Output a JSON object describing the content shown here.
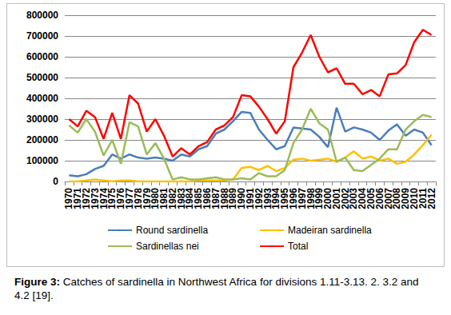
{
  "chart_data": {
    "type": "line",
    "title": "Figure 3: Catches of sardinella in Northwest Africa for divisions 1.11-3.13. 2. 3.2 and 4.2 [19].",
    "categories": [
      "1970",
      "1971",
      "1972",
      "1973",
      "1974",
      "1975",
      "1976",
      "1977",
      "1978",
      "1979",
      "1980",
      "1981",
      "1982",
      "1983",
      "1984",
      "1985",
      "1986",
      "1987",
      "1988",
      "1989",
      "1990",
      "1991",
      "1992",
      "1993",
      "1994",
      "1995",
      "1996",
      "1997",
      "1998",
      "1999",
      "2000",
      "2001",
      "2002",
      "2003",
      "2004",
      "2005",
      "2006",
      "2007",
      "2008",
      "2009",
      "2010",
      "2011",
      "2012"
    ],
    "series": [
      {
        "name": "Round sardinella",
        "color": "#4a7ebb",
        "values": [
          30000,
          25000,
          35000,
          60000,
          75000,
          130000,
          110000,
          130000,
          115000,
          110000,
          115000,
          110000,
          100000,
          130000,
          120000,
          155000,
          170000,
          230000,
          250000,
          290000,
          335000,
          330000,
          250000,
          200000,
          155000,
          170000,
          260000,
          255000,
          250000,
          215000,
          165000,
          355000,
          240000,
          260000,
          250000,
          235000,
          200000,
          245000,
          275000,
          220000,
          250000,
          235000,
          175000
        ]
      },
      {
        "name": "Madeiran sardinella",
        "color": "#ffc000",
        "values": [
          0,
          0,
          5000,
          10000,
          5000,
          0,
          5000,
          5000,
          0,
          0,
          0,
          0,
          0,
          0,
          0,
          5000,
          5000,
          5000,
          5000,
          10000,
          65000,
          70000,
          55000,
          75000,
          50000,
          65000,
          105000,
          110000,
          100000,
          105000,
          110000,
          95000,
          115000,
          145000,
          110000,
          120000,
          100000,
          110000,
          85000,
          95000,
          130000,
          175000,
          225000
        ]
      },
      {
        "name": "Sardinellas nei",
        "color": "#9bbb59",
        "values": [
          270000,
          235000,
          300000,
          240000,
          125000,
          200000,
          85000,
          285000,
          265000,
          130000,
          185000,
          110000,
          10000,
          20000,
          10000,
          10000,
          15000,
          20000,
          10000,
          10000,
          15000,
          10000,
          40000,
          25000,
          25000,
          55000,
          185000,
          250000,
          350000,
          280000,
          250000,
          95000,
          115000,
          55000,
          50000,
          80000,
          110000,
          155000,
          155000,
          250000,
          290000,
          320000,
          310000
        ]
      },
      {
        "name": "Total",
        "color": "#ff0000",
        "values": [
          300000,
          265000,
          340000,
          310000,
          205000,
          330000,
          205000,
          415000,
          375000,
          240000,
          300000,
          220000,
          120000,
          160000,
          130000,
          170000,
          190000,
          250000,
          270000,
          310000,
          415000,
          410000,
          360000,
          300000,
          230000,
          290000,
          550000,
          620000,
          705000,
          600000,
          525000,
          545000,
          470000,
          470000,
          420000,
          440000,
          410000,
          515000,
          520000,
          560000,
          670000,
          730000,
          705000
        ]
      }
    ],
    "ylim": [
      0,
      800000
    ],
    "yticks": [
      0,
      100000,
      200000,
      300000,
      400000,
      500000,
      600000,
      700000,
      800000
    ],
    "grid": true,
    "legend": "bottom",
    "marker": "none"
  }
}
